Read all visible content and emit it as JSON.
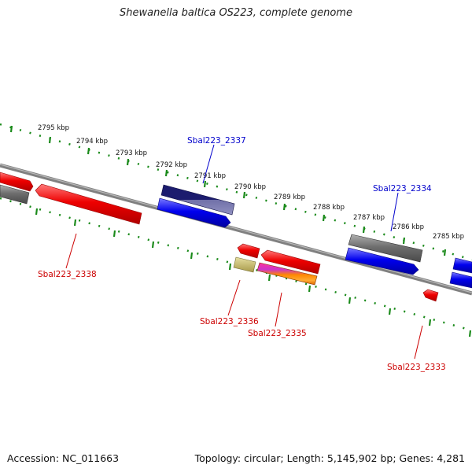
{
  "title": "Shewanella baltica OS223, complete genome",
  "footer": {
    "accession": "Accession: NC_011663",
    "summary": "Topology: circular; Length: 5,145,902 bp; Genes: 4,281"
  },
  "colors": {
    "ruler": "#1a8a1a",
    "backbone": "#808080",
    "gene_red": "#ee0000",
    "gene_blue": "#0000ee",
    "gene_navy": "#1c1c6e",
    "gene_gray": "#6e6e6e",
    "gene_khaki": "#bdb56b",
    "label_red": "#cc0000",
    "label_blue": "#0000cc"
  },
  "ruler_labels": [
    "2795 kbp",
    "2794 kbp",
    "2793 kbp",
    "2792 kbp",
    "2791 kbp",
    "2790 kbp",
    "2789 kbp",
    "2788 kbp",
    "2787 kbp",
    "2786 kbp",
    "2785 kbp"
  ],
  "gene_labels": {
    "g2337": "Sbal223_2337",
    "g2334": "Sbal223_2334",
    "g2338": "Sbal223_2338",
    "g2336": "Sbal223_2336",
    "g2335": "Sbal223_2335",
    "g2333": "Sbal223_2333"
  }
}
